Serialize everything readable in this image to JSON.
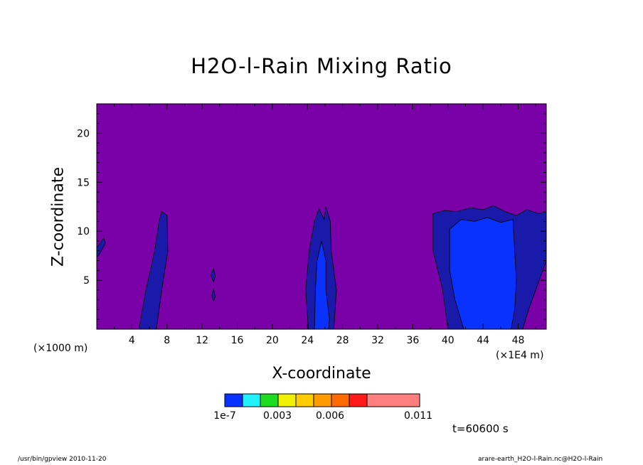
{
  "chart_data": {
    "type": "heatmap",
    "title": "H2O-l-Rain Mixing Ratio",
    "xlabel": "X-coordinate",
    "ylabel": "Z-coordinate",
    "x_unit": "(×1E4 m)",
    "y_unit": "(×1000 m)",
    "x_ticks": [
      4,
      8,
      12,
      16,
      20,
      24,
      28,
      32,
      36,
      40,
      44,
      48
    ],
    "y_ticks": [
      5,
      10,
      15,
      20
    ],
    "xlim": [
      0,
      51.2
    ],
    "ylim": [
      0,
      23
    ],
    "grid": false,
    "colorbar": {
      "colors": [
        "#0a32ff",
        "#20f0ff",
        "#1edc1e",
        "#f0f000",
        "#ffcc00",
        "#ff9a00",
        "#ff6a00",
        "#ff1a1a",
        "#ff7f7f"
      ],
      "labels": [
        "1e-7",
        "0.003",
        "0.006",
        "0.011"
      ],
      "label_values": [
        1e-07,
        0.003,
        0.006,
        0.011
      ]
    },
    "background_color": "#7a00a8",
    "contour_colors": {
      "low": "#1a1aaa",
      "mid": "#0a32ff",
      "high": "#1e5aff"
    },
    "features": [
      {
        "region": "low",
        "points": [
          [
            4.8,
            0
          ],
          [
            5.6,
            4
          ],
          [
            6.6,
            8
          ],
          [
            7.1,
            11
          ],
          [
            7.4,
            12
          ],
          [
            8.0,
            11.6
          ],
          [
            8.1,
            8
          ],
          [
            7.4,
            4
          ],
          [
            6.8,
            0
          ]
        ]
      },
      {
        "region": "low",
        "points": [
          [
            0,
            8.3
          ],
          [
            0.8,
            9.3
          ],
          [
            1.0,
            8.8
          ],
          [
            0.4,
            7.8
          ],
          [
            0,
            7.3
          ]
        ]
      },
      {
        "region": "low",
        "points": [
          [
            13.0,
            5.5
          ],
          [
            13.3,
            6.2
          ],
          [
            13.5,
            5.4
          ],
          [
            13.3,
            4.8
          ]
        ]
      },
      {
        "region": "low",
        "points": [
          [
            13.1,
            3.4
          ],
          [
            13.3,
            4.1
          ],
          [
            13.5,
            3.3
          ],
          [
            13.3,
            2.9
          ]
        ]
      },
      {
        "region": "low",
        "points": [
          [
            24.1,
            0
          ],
          [
            23.8,
            4
          ],
          [
            24.2,
            8
          ],
          [
            24.8,
            11
          ],
          [
            25.3,
            12.3
          ],
          [
            25.9,
            11.2
          ],
          [
            26.1,
            12.5
          ],
          [
            26.6,
            11
          ],
          [
            26.7,
            8
          ],
          [
            27.3,
            4
          ],
          [
            27.0,
            0
          ]
        ]
      },
      {
        "region": "mid",
        "points": [
          [
            24.8,
            0
          ],
          [
            24.9,
            4
          ],
          [
            25.1,
            7
          ],
          [
            25.6,
            9
          ],
          [
            26.1,
            7
          ],
          [
            26.1,
            4
          ],
          [
            26.5,
            1
          ],
          [
            26.4,
            0
          ]
        ]
      },
      {
        "region": "low",
        "points": [
          [
            40.0,
            0
          ],
          [
            39.4,
            4
          ],
          [
            38.3,
            8
          ],
          [
            38.3,
            11.8
          ],
          [
            39.6,
            12.1
          ],
          [
            41.0,
            12.0
          ],
          [
            42.6,
            12.4
          ],
          [
            44.0,
            12.2
          ],
          [
            45.2,
            12.6
          ],
          [
            46.5,
            12.0
          ],
          [
            47.8,
            11.6
          ],
          [
            49.0,
            12.2
          ],
          [
            50.3,
            11.8
          ],
          [
            51.2,
            12.0
          ],
          [
            51.2,
            7
          ],
          [
            50.0,
            4
          ],
          [
            49.2,
            2
          ],
          [
            48.5,
            0
          ]
        ]
      },
      {
        "region": "mid",
        "points": [
          [
            41.8,
            0
          ],
          [
            40.8,
            3
          ],
          [
            40.2,
            6
          ],
          [
            40.2,
            10.2
          ],
          [
            41.5,
            11.2
          ],
          [
            43.0,
            11.0
          ],
          [
            44.5,
            11.4
          ],
          [
            46.0,
            10.9
          ],
          [
            47.4,
            11.2
          ],
          [
            47.6,
            8
          ],
          [
            47.8,
            5
          ],
          [
            47.6,
            2
          ],
          [
            47.2,
            0
          ]
        ]
      }
    ]
  },
  "footer": {
    "time": "t=60600 s",
    "left": "/usr/bin/gpview 2010-11-20",
    "right": "arare-earth_H2O-l-Rain.nc@H2O-l-Rain"
  }
}
